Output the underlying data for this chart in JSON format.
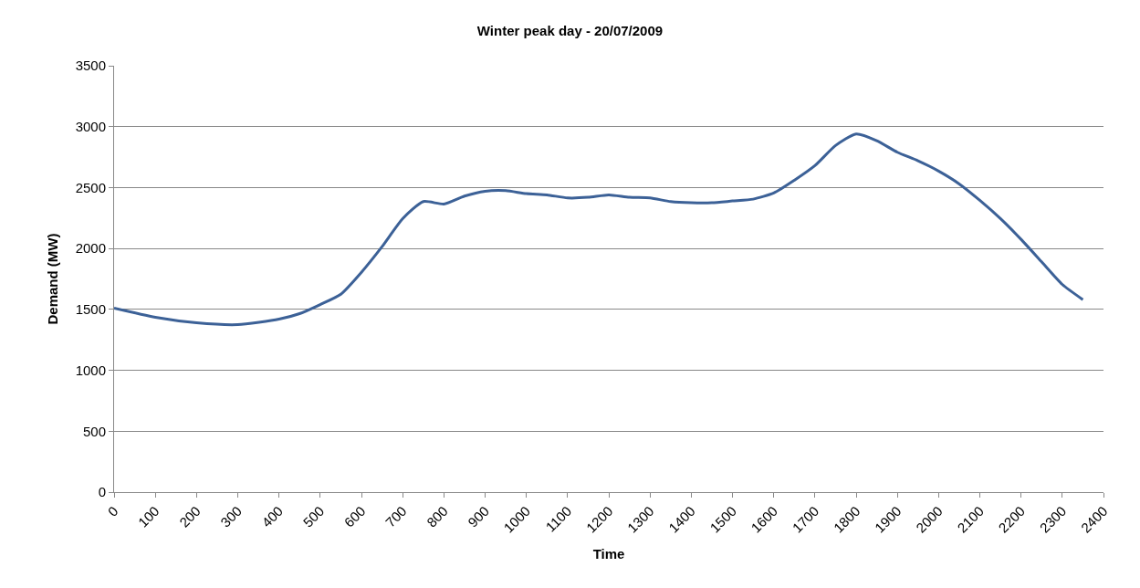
{
  "chart_data": {
    "type": "line",
    "title": "Winter peak day - 20/07/2009",
    "xlabel": "Time",
    "ylabel": "Demand (MW)",
    "x": [
      0,
      100,
      200,
      300,
      400,
      450,
      500,
      550,
      600,
      650,
      700,
      750,
      800,
      850,
      900,
      950,
      1000,
      1050,
      1100,
      1150,
      1200,
      1250,
      1300,
      1350,
      1400,
      1450,
      1500,
      1550,
      1600,
      1650,
      1700,
      1750,
      1800,
      1850,
      1900,
      1950,
      2000,
      2050,
      2100,
      2150,
      2200,
      2250,
      2300,
      2350
    ],
    "series": [
      {
        "color": "#3c6197",
        "values": [
          1510,
          1435,
          1390,
          1375,
          1420,
          1465,
          1540,
          1625,
          1805,
          2015,
          2245,
          2385,
          2365,
          2430,
          2470,
          2475,
          2450,
          2440,
          2415,
          2420,
          2440,
          2420,
          2415,
          2385,
          2375,
          2375,
          2390,
          2405,
          2455,
          2560,
          2680,
          2845,
          2940,
          2885,
          2790,
          2720,
          2635,
          2530,
          2395,
          2245,
          2075,
          1890,
          1705,
          1580
        ]
      }
    ],
    "xlim": [
      0,
      2400
    ],
    "xticks": [
      0,
      100,
      200,
      300,
      400,
      500,
      600,
      700,
      800,
      900,
      1000,
      1100,
      1200,
      1300,
      1400,
      1500,
      1600,
      1700,
      1800,
      1900,
      2000,
      2100,
      2200,
      2300,
      2400
    ],
    "ylim": [
      0,
      3500
    ],
    "yticks": [
      0,
      500,
      1000,
      1500,
      2000,
      2500,
      3000,
      3500
    ],
    "grid": "y",
    "marker": "none",
    "line_style": "solid"
  }
}
